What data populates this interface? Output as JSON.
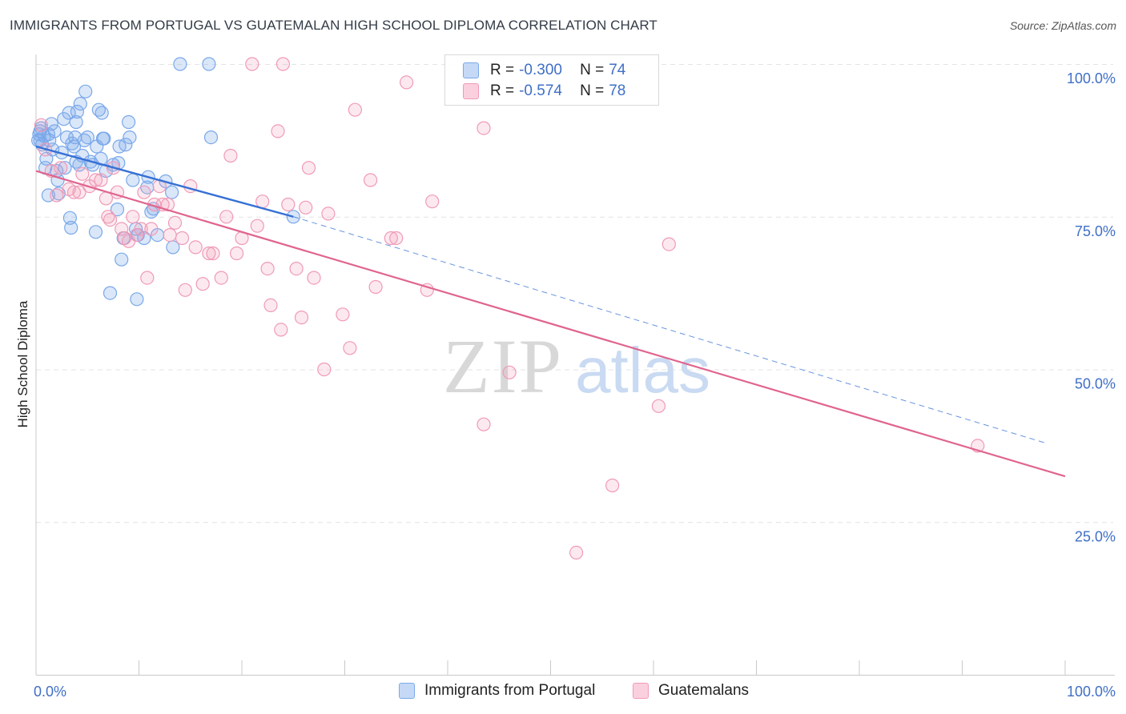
{
  "title": "IMMIGRANTS FROM PORTUGAL VS GUATEMALAN HIGH SCHOOL DIPLOMA CORRELATION CHART",
  "source": "Source: ZipAtlas.com",
  "watermark": {
    "zip": "ZIP",
    "atlas": "atlas"
  },
  "legend": {
    "rows": [
      {
        "r_label": "R =",
        "r_value": "-0.300",
        "n_label": "N =",
        "n_value": "74",
        "color": "#7aa8ea"
      },
      {
        "r_label": "R =",
        "r_value": "-0.574",
        "n_label": "N =",
        "n_value": "78",
        "color": "#f09ab6"
      }
    ]
  },
  "chart_data": {
    "type": "scatter",
    "ylabel": "High School Diploma",
    "xlim": [
      0,
      100
    ],
    "ylim": [
      0,
      100
    ],
    "x_tick_labels": [
      "0.0%",
      "100.0%"
    ],
    "y_tick_labels": [
      "100.0%",
      "75.0%",
      "50.0%",
      "25.0%"
    ],
    "y_tick_values": [
      100,
      75,
      50,
      25
    ],
    "grid": true,
    "legend_placement": "bottom",
    "series": [
      {
        "name": "Immigrants from Portugal",
        "color": "#7aa8ea",
        "line_color": "#3570d4",
        "trend": {
          "x0": 0,
          "y0": 86.5,
          "x1": 25,
          "y1": 75.0,
          "dash_to_x": 98,
          "dash_to_y": 38.0
        },
        "points": [
          [
            0.3,
            88.5
          ],
          [
            0.4,
            87.5
          ],
          [
            0.5,
            89.5
          ],
          [
            0.6,
            86.8
          ],
          [
            0.8,
            88.2
          ],
          [
            0.9,
            83.0
          ],
          [
            1.0,
            84.5
          ],
          [
            1.2,
            78.5
          ],
          [
            1.3,
            87.5
          ],
          [
            1.5,
            90.2
          ],
          [
            1.6,
            86.0
          ],
          [
            1.8,
            89.0
          ],
          [
            2.0,
            82.5
          ],
          [
            2.1,
            81.0
          ],
          [
            2.2,
            78.8
          ],
          [
            2.5,
            85.5
          ],
          [
            2.7,
            91.0
          ],
          [
            2.8,
            83.0
          ],
          [
            3.0,
            88.0
          ],
          [
            3.2,
            92.0
          ],
          [
            3.3,
            74.8
          ],
          [
            3.4,
            73.2
          ],
          [
            3.5,
            87.0
          ],
          [
            3.7,
            86.5
          ],
          [
            3.8,
            88.0
          ],
          [
            3.9,
            90.5
          ],
          [
            4.0,
            92.2
          ],
          [
            4.2,
            83.5
          ],
          [
            4.3,
            93.5
          ],
          [
            4.5,
            85.0
          ],
          [
            4.7,
            87.5
          ],
          [
            4.8,
            95.5
          ],
          [
            5.0,
            88.0
          ],
          [
            5.3,
            84.0
          ],
          [
            5.5,
            83.5
          ],
          [
            5.8,
            72.5
          ],
          [
            5.9,
            86.5
          ],
          [
            6.1,
            92.5
          ],
          [
            6.3,
            84.5
          ],
          [
            6.4,
            92.0
          ],
          [
            6.5,
            87.8
          ],
          [
            6.6,
            87.8
          ],
          [
            6.8,
            82.5
          ],
          [
            7.2,
            62.5
          ],
          [
            7.5,
            83.5
          ],
          [
            7.9,
            76.2
          ],
          [
            8.0,
            83.8
          ],
          [
            8.1,
            86.5
          ],
          [
            8.3,
            68.0
          ],
          [
            8.5,
            71.5
          ],
          [
            8.7,
            86.8
          ],
          [
            9.0,
            90.5
          ],
          [
            9.1,
            88.0
          ],
          [
            9.4,
            81.0
          ],
          [
            9.7,
            73.0
          ],
          [
            9.8,
            61.5
          ],
          [
            9.9,
            72.0
          ],
          [
            10.5,
            71.5
          ],
          [
            10.8,
            79.8
          ],
          [
            10.9,
            81.5
          ],
          [
            11.2,
            75.8
          ],
          [
            11.4,
            76.3
          ],
          [
            11.8,
            72.0
          ],
          [
            12.6,
            80.8
          ],
          [
            13.2,
            79.0
          ],
          [
            13.3,
            70.0
          ],
          [
            14.0,
            100.0
          ],
          [
            16.8,
            100.0
          ],
          [
            17.0,
            88.0
          ],
          [
            25.0,
            75.0
          ],
          [
            0.2,
            87.5
          ],
          [
            0.4,
            89.0
          ],
          [
            1.2,
            88.5
          ],
          [
            3.9,
            84.0
          ]
        ]
      },
      {
        "name": "Guatemalans",
        "color": "#f09ab6",
        "line_color": "#e0648e",
        "trend": {
          "x0": 0,
          "y0": 82.5,
          "x1": 100,
          "y1": 32.5
        },
        "points": [
          [
            0.5,
            90.0
          ],
          [
            0.9,
            86.0
          ],
          [
            1.5,
            82.5
          ],
          [
            2.0,
            78.5
          ],
          [
            2.4,
            83.0
          ],
          [
            3.2,
            79.5
          ],
          [
            3.7,
            79.0
          ],
          [
            4.2,
            79.0
          ],
          [
            4.5,
            82.0
          ],
          [
            5.2,
            80.0
          ],
          [
            5.8,
            81.0
          ],
          [
            6.3,
            81.0
          ],
          [
            6.8,
            78.0
          ],
          [
            7.0,
            75.0
          ],
          [
            7.2,
            74.5
          ],
          [
            7.5,
            83.0
          ],
          [
            7.9,
            79.0
          ],
          [
            8.3,
            73.0
          ],
          [
            8.6,
            71.5
          ],
          [
            9.0,
            71.0
          ],
          [
            9.4,
            75.0
          ],
          [
            9.8,
            72.0
          ],
          [
            10.2,
            73.0
          ],
          [
            10.5,
            79.0
          ],
          [
            10.8,
            65.0
          ],
          [
            11.2,
            73.0
          ],
          [
            11.5,
            77.0
          ],
          [
            12.0,
            80.0
          ],
          [
            12.3,
            77.0
          ],
          [
            12.8,
            77.0
          ],
          [
            13.0,
            72.0
          ],
          [
            13.5,
            74.0
          ],
          [
            14.2,
            71.5
          ],
          [
            14.5,
            63.0
          ],
          [
            15.0,
            80.0
          ],
          [
            15.5,
            70.0
          ],
          [
            16.2,
            64.0
          ],
          [
            16.8,
            69.0
          ],
          [
            17.2,
            69.0
          ],
          [
            18.0,
            65.0
          ],
          [
            18.5,
            75.0
          ],
          [
            18.9,
            85.0
          ],
          [
            19.5,
            69.0
          ],
          [
            20.0,
            71.5
          ],
          [
            21.5,
            73.5
          ],
          [
            22.0,
            77.5
          ],
          [
            22.5,
            66.5
          ],
          [
            22.8,
            60.5
          ],
          [
            23.5,
            89.0
          ],
          [
            23.8,
            56.5
          ],
          [
            24.5,
            77.0
          ],
          [
            25.3,
            66.5
          ],
          [
            25.8,
            58.5
          ],
          [
            26.2,
            76.5
          ],
          [
            26.5,
            83.0
          ],
          [
            27.0,
            65.0
          ],
          [
            28.0,
            50.0
          ],
          [
            28.4,
            75.5
          ],
          [
            29.8,
            59.0
          ],
          [
            30.5,
            53.5
          ],
          [
            31.0,
            92.5
          ],
          [
            32.5,
            81.0
          ],
          [
            33.0,
            63.5
          ],
          [
            34.5,
            71.5
          ],
          [
            35.0,
            71.5
          ],
          [
            36.0,
            97.0
          ],
          [
            38.0,
            63.0
          ],
          [
            38.5,
            77.5
          ],
          [
            43.5,
            89.5
          ],
          [
            43.5,
            41.0
          ],
          [
            46.0,
            49.5
          ],
          [
            52.5,
            20.0
          ],
          [
            56.0,
            31.0
          ],
          [
            60.5,
            44.0
          ],
          [
            61.5,
            70.5
          ],
          [
            91.5,
            37.5
          ],
          [
            21.0,
            100.0
          ],
          [
            24.0,
            100.0
          ]
        ]
      }
    ]
  }
}
